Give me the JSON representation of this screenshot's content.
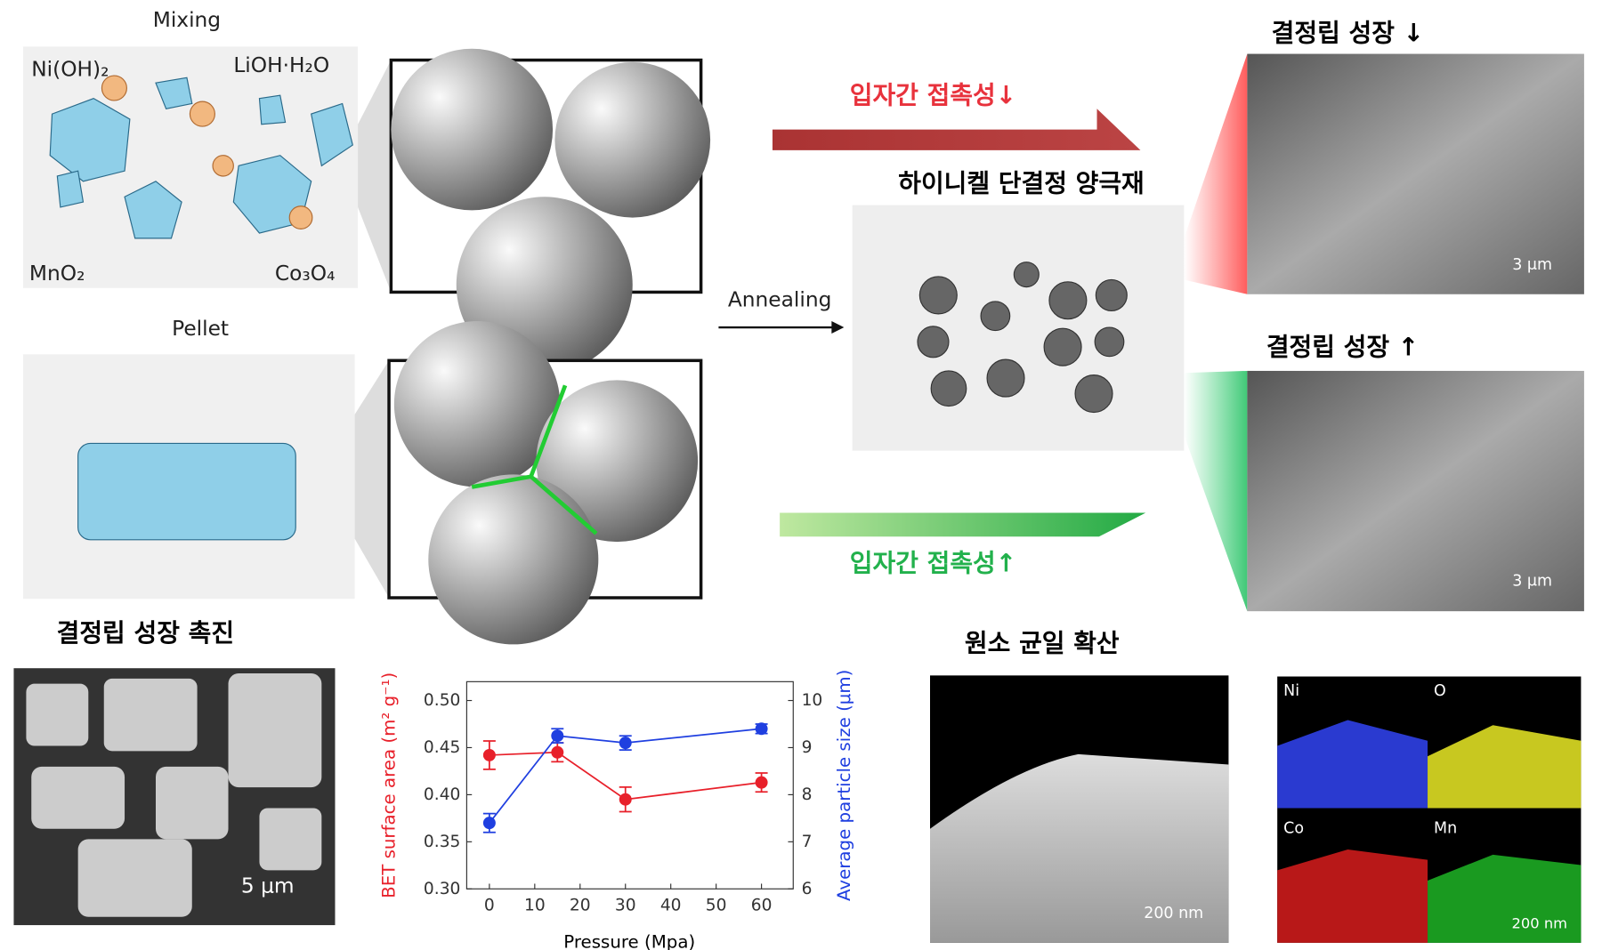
{
  "labels": {
    "mixing": "Mixing",
    "nioh2": "Ni(OH)₂",
    "lioh": "LiOH·H₂O",
    "mno2": "MnO₂",
    "co3o4": "Co₃O₄",
    "pellet": "Pellet",
    "contact_down": "입자간 접촉성↓",
    "contact_up": "입자간 접촉성↑",
    "annealing": "Annealing",
    "product": "하이니켈 단결정 양극재",
    "growth_down": "결정립 성장 ↓",
    "growth_up": "결정립 성장 ↑",
    "scale_top": "3 μm",
    "scale_bottom": "3 μm",
    "promote": "결정립 성장 촉진",
    "scale_sem": "5 μm",
    "diffusion": "원소 균일 확산",
    "scale_tem": "200 nm",
    "eds_ni": "Ni",
    "eds_o": "O",
    "eds_co": "Co",
    "eds_mn": "Mn",
    "scale_eds": "200 nm"
  },
  "chart_data": {
    "type": "line",
    "x_label": "Pressure (Mpa)",
    "y_label": "BET surface area (m² g⁻¹)",
    "y2_label": "Average particle size (μm)",
    "x": [
      0,
      15,
      30,
      60
    ],
    "series": [
      {
        "name": "BET surface area",
        "color": "#e8202a",
        "values": [
          0.442,
          0.445,
          0.395,
          0.413
        ],
        "errors": [
          0.015,
          0.01,
          0.013,
          0.01
        ]
      },
      {
        "name": "Average particle size",
        "color": "#1f3fe0",
        "axis": "y2",
        "values": [
          7.4,
          9.25,
          9.1,
          9.4
        ],
        "errors": [
          0.2,
          0.15,
          0.15,
          0.1
        ]
      }
    ],
    "xlim": [
      -5,
      67
    ],
    "xticks": [
      0,
      10,
      20,
      30,
      40,
      50,
      60
    ],
    "ylim": [
      0.3,
      0.52
    ],
    "yticks": [
      {
        "value": 0.3,
        "label": "0.30"
      },
      0.35,
      {
        "value": 0.4,
        "label": "0.40"
      },
      0.45,
      {
        "value": 0.5,
        "label": "0.50"
      }
    ],
    "y2lim": [
      6,
      10.4
    ],
    "y2ticks": [
      6,
      7,
      8,
      9,
      10
    ]
  }
}
